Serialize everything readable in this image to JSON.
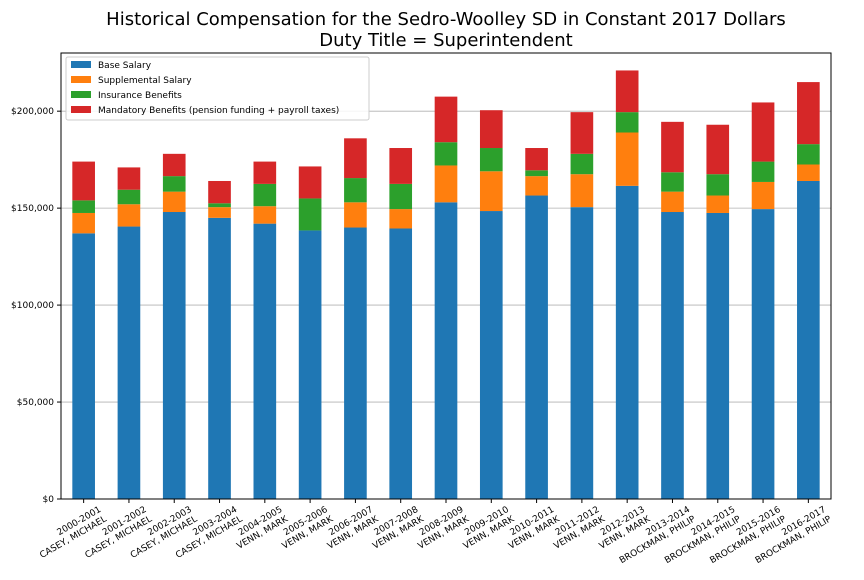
{
  "chart_data": {
    "type": "bar",
    "stacked": true,
    "title_line1": "Historical Compensation for the Sedro-Woolley SD in Constant 2017 Dollars",
    "title_line2": "Duty Title = Superintendent",
    "xlabel": "",
    "ylabel": "",
    "ylim": [
      0,
      230000
    ],
    "yticks": [
      0,
      50000,
      100000,
      150000,
      200000
    ],
    "ytick_labels": [
      "$0",
      "$50,000",
      "$100,000",
      "$150,000",
      "$200,000"
    ],
    "grid": "horizontal",
    "legend_position": "top-left",
    "categories": [
      {
        "year": "2000-2001",
        "name": "CASEY, MICHAEL"
      },
      {
        "year": "2001-2002",
        "name": "CASEY, MICHAEL"
      },
      {
        "year": "2002-2003",
        "name": "CASEY, MICHAEL"
      },
      {
        "year": "2003-2004",
        "name": "CASEY, MICHAEL"
      },
      {
        "year": "2004-2005",
        "name": "VENN, MARK"
      },
      {
        "year": "2005-2006",
        "name": "VENN, MARK"
      },
      {
        "year": "2006-2007",
        "name": "VENN, MARK"
      },
      {
        "year": "2007-2008",
        "name": "VENN, MARK"
      },
      {
        "year": "2008-2009",
        "name": "VENN, MARK"
      },
      {
        "year": "2009-2010",
        "name": "VENN, MARK"
      },
      {
        "year": "2010-2011",
        "name": "VENN, MARK"
      },
      {
        "year": "2011-2012",
        "name": "VENN, MARK"
      },
      {
        "year": "2012-2013",
        "name": "VENN, MARK"
      },
      {
        "year": "2013-2014",
        "name": "BROCKMAN, PHILIP"
      },
      {
        "year": "2014-2015",
        "name": "BROCKMAN, PHILIP"
      },
      {
        "year": "2015-2016",
        "name": "BROCKMAN, PHILIP"
      },
      {
        "year": "2016-2017",
        "name": "BROCKMAN, PHILIP"
      }
    ],
    "series": [
      {
        "name": "Base Salary",
        "color": "#1f77b4",
        "values": [
          137000,
          140500,
          148000,
          145000,
          142000,
          138500,
          140000,
          139500,
          153000,
          148500,
          156500,
          150500,
          161500,
          148000,
          147500,
          149500,
          164000
        ]
      },
      {
        "name": "Supplemental Salary",
        "color": "#ff7f0e",
        "values": [
          10500,
          11500,
          10500,
          5500,
          9000,
          0,
          13000,
          10000,
          19000,
          20500,
          10000,
          17000,
          27500,
          10500,
          9000,
          14000,
          8500
        ]
      },
      {
        "name": "Insurance Benefits",
        "color": "#2ca02c",
        "values": [
          6500,
          7500,
          8000,
          2000,
          11500,
          16500,
          12500,
          13000,
          12000,
          12000,
          3000,
          10500,
          10500,
          10000,
          11000,
          10500,
          10500
        ]
      },
      {
        "name": "Mandatory Benefits (pension funding + payroll taxes)",
        "color": "#d62728",
        "values": [
          20000,
          11500,
          11500,
          11500,
          11500,
          16500,
          20500,
          18500,
          23500,
          19500,
          11500,
          21500,
          21500,
          26000,
          25500,
          30500,
          32000
        ]
      }
    ]
  }
}
